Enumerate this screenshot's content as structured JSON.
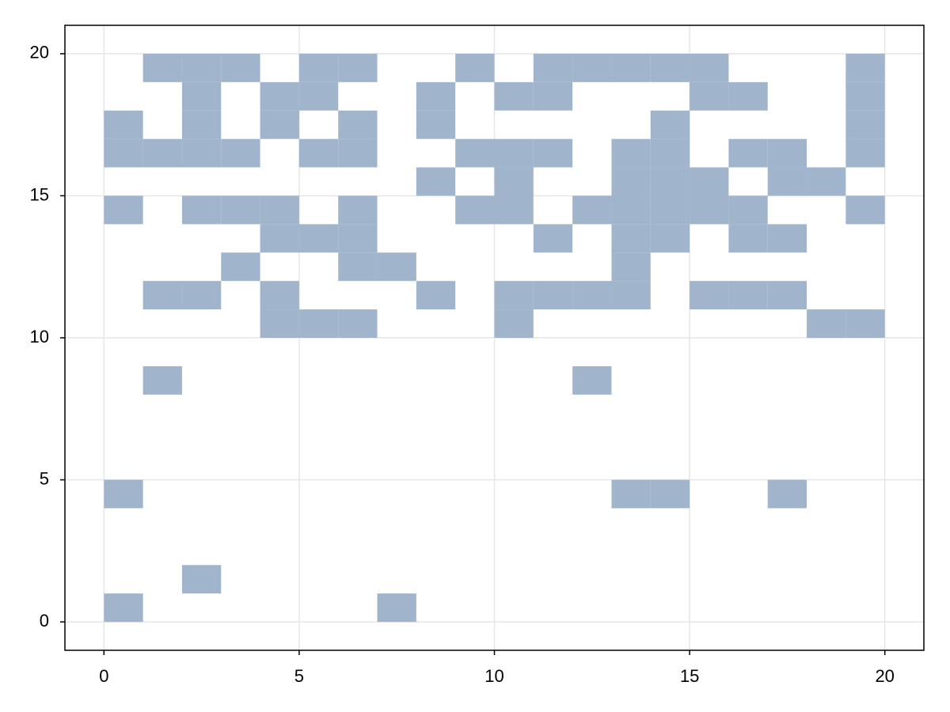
{
  "chart_data": {
    "type": "heatmap",
    "color": "#a0b5cc",
    "grid": true,
    "x": [
      1,
      2,
      3,
      5,
      6,
      9,
      11,
      12,
      13,
      14,
      15,
      19,
      2,
      4,
      5,
      8,
      10,
      11,
      15,
      16,
      19,
      0,
      2,
      4,
      6,
      8,
      14,
      19,
      0,
      1,
      2,
      3,
      5,
      6,
      9,
      10,
      11,
      13,
      14,
      16,
      17,
      19,
      8,
      10,
      13,
      14,
      15,
      17,
      18,
      0,
      2,
      3,
      4,
      6,
      9,
      10,
      12,
      13,
      14,
      15,
      16,
      19,
      4,
      5,
      6,
      11,
      13,
      14,
      16,
      17,
      3,
      6,
      7,
      13,
      1,
      2,
      4,
      8,
      10,
      11,
      12,
      13,
      15,
      16,
      17,
      4,
      5,
      6,
      10,
      18,
      19,
      1,
      12,
      0,
      13,
      14,
      17,
      2,
      0,
      7
    ],
    "y": [
      19,
      19,
      19,
      19,
      19,
      19,
      19,
      19,
      19,
      19,
      19,
      19,
      18,
      18,
      18,
      18,
      18,
      18,
      18,
      18,
      18,
      17,
      17,
      17,
      17,
      17,
      17,
      17,
      16,
      16,
      16,
      16,
      16,
      16,
      16,
      16,
      16,
      16,
      16,
      16,
      16,
      16,
      15,
      15,
      15,
      15,
      15,
      15,
      15,
      14,
      14,
      14,
      14,
      14,
      14,
      14,
      14,
      14,
      14,
      14,
      14,
      14,
      13,
      13,
      13,
      13,
      13,
      13,
      13,
      13,
      12,
      12,
      12,
      12,
      11,
      11,
      11,
      11,
      11,
      11,
      11,
      11,
      11,
      11,
      11,
      10,
      10,
      10,
      10,
      10,
      10,
      8,
      8,
      4,
      4,
      4,
      4,
      1,
      0,
      0
    ],
    "xlim": [
      -1,
      21
    ],
    "ylim": [
      -1,
      21
    ],
    "xticks": [
      0,
      5,
      10,
      15,
      20
    ],
    "yticks": [
      0,
      5,
      10,
      15,
      20
    ]
  }
}
